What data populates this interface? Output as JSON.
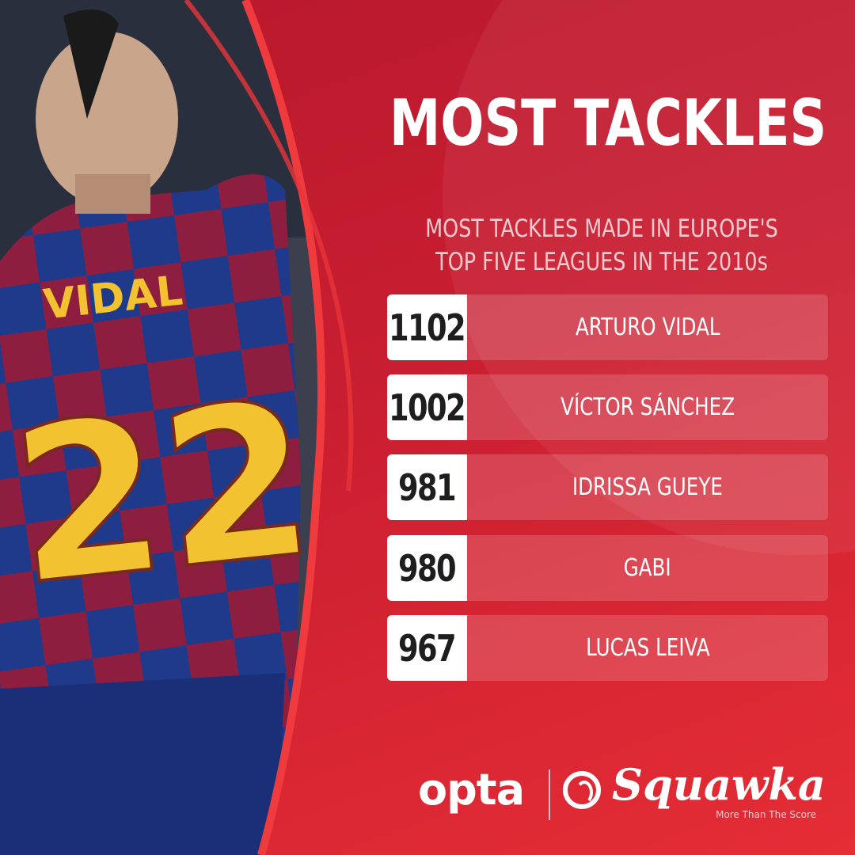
{
  "header": {
    "title": "MOST TACKLES",
    "subtitle_line1": "MOST TACKLES MADE IN EUROPE'S",
    "subtitle_line2": "TOP FIVE LEAGUES IN THE 2010s"
  },
  "rankings": [
    {
      "tackles": "1102",
      "player": "ARTURO VIDAL"
    },
    {
      "tackles": "1002",
      "player": "VÍCTOR SÁNCHEZ"
    },
    {
      "tackles": "981",
      "player": "IDRISSA GUEYE"
    },
    {
      "tackles": "980",
      "player": "GABI"
    },
    {
      "tackles": "967",
      "player": "LUCAS LEIVA"
    }
  ],
  "photo": {
    "jersey_name": "VIDAL",
    "jersey_number": "22"
  },
  "footer": {
    "opta_logo": "opta",
    "squawka_logo": "Squawka",
    "squawka_tagline": "More Than The Score"
  },
  "colors": {
    "background": "#c91e31",
    "accent": "#e52d35",
    "number_box": "#ffffff",
    "jersey_yellow": "#f2c230"
  }
}
